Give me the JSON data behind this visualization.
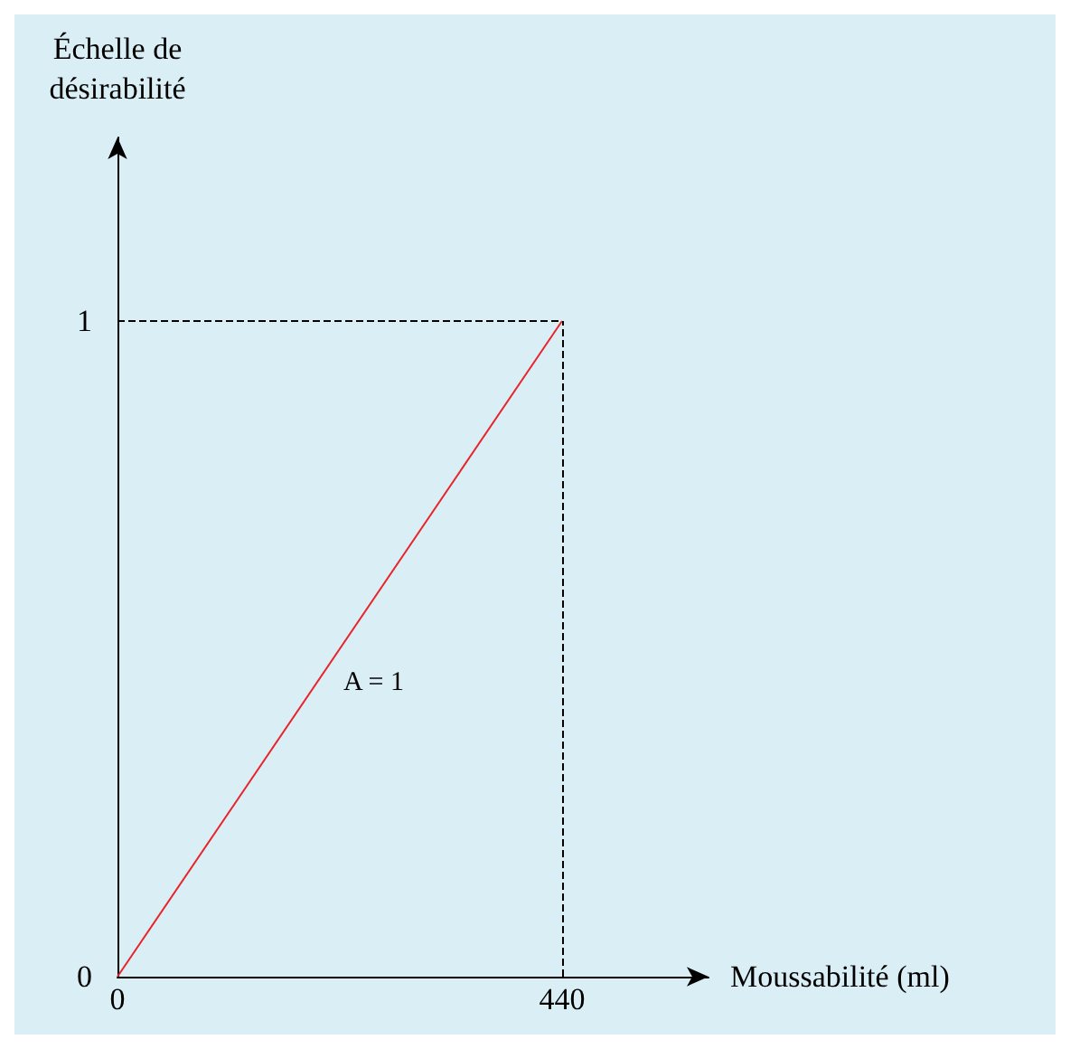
{
  "chart_data": {
    "type": "line",
    "xlabel": "Moussabilité (ml)",
    "ylabel": "Échelle de\ndésirabilité",
    "x": [
      0,
      440
    ],
    "series": [
      {
        "color": "#e8242b",
        "values": [
          0,
          1
        ]
      }
    ],
    "xlim": [
      0,
      585
    ],
    "ylim": [
      0,
      1.28
    ],
    "xticks": [
      0,
      440
    ],
    "yticks": [
      0,
      1
    ],
    "ref_lines": [
      {
        "axis": "y",
        "value": 1,
        "line_style": "dashed",
        "color": "#000000"
      },
      {
        "axis": "x",
        "value": 440,
        "line_style": "dashed",
        "color": "#000000"
      }
    ],
    "annotations": [
      "A = 1"
    ],
    "grid": false,
    "marker": "none",
    "line_style": "solid"
  }
}
